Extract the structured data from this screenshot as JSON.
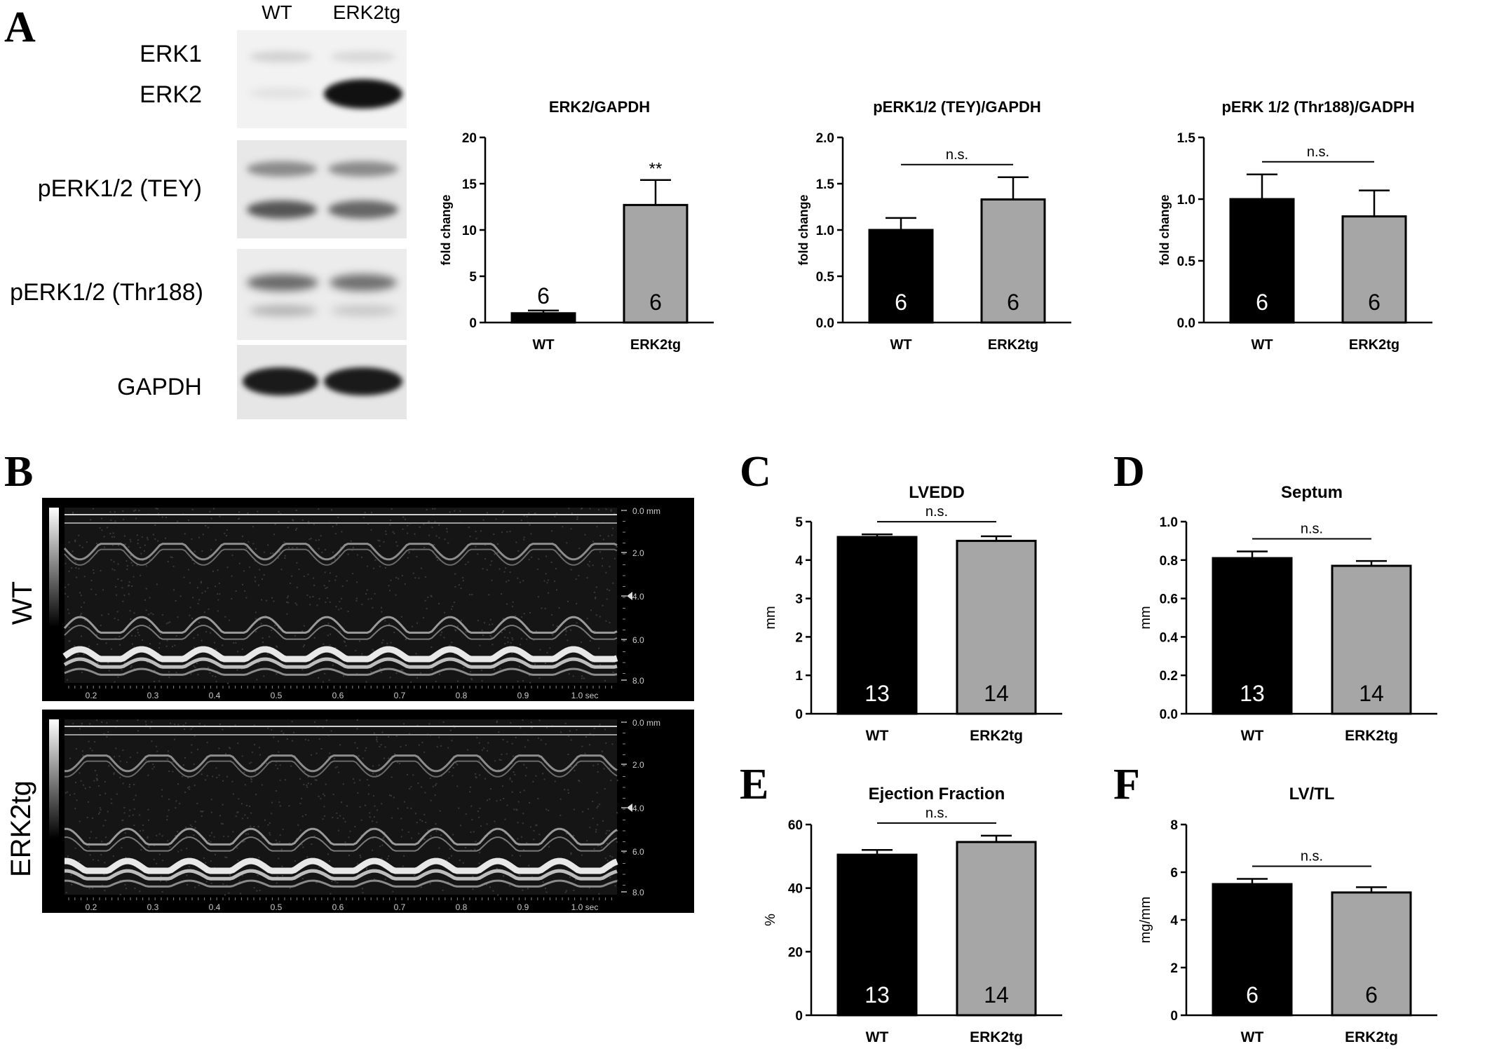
{
  "panels": {
    "A": "A",
    "B": "B",
    "C": "C",
    "D": "D",
    "E": "E",
    "F": "F"
  },
  "blot": {
    "lanes": [
      "WT",
      "ERK2tg"
    ],
    "rows": [
      {
        "labels": [
          "ERK1",
          "ERK2"
        ]
      },
      {
        "labels": [
          "pERK1/2 (TEY)"
        ]
      },
      {
        "labels": [
          "pERK1/2 (Thr188)"
        ]
      },
      {
        "labels": [
          "GAPDH"
        ]
      }
    ]
  },
  "echo": {
    "traces": [
      {
        "label": "WT",
        "depth_ticks": [
          "0.0 mm",
          "2.0",
          "4.0",
          "6.0",
          "8.0"
        ],
        "time_ticks": [
          "0.2",
          "0.3",
          "0.4",
          "0.5",
          "0.6",
          "0.7",
          "0.8",
          "0.9",
          "1.0 sec"
        ]
      },
      {
        "label": "ERK2tg",
        "depth_ticks": [
          "0.0 mm",
          "2.0",
          "4.0",
          "6.0",
          "8.0"
        ],
        "time_ticks": [
          "0.2",
          "0.3",
          "0.4",
          "0.5",
          "0.6",
          "0.7",
          "0.8",
          "0.9",
          "1.0 sec"
        ]
      }
    ]
  },
  "colors": {
    "wt_bar": "#000000",
    "erk2tg_bar": "#a6a6a6",
    "axis": "#000000"
  },
  "chart_data": [
    {
      "id": "erk2",
      "type": "bar",
      "title": "ERK2/GAPDH",
      "ylabel": "fold change",
      "categories": [
        "WT",
        "ERK2tg"
      ],
      "values": [
        1.0,
        12.7
      ],
      "errors": [
        0.3,
        2.7
      ],
      "n_labels": [
        "6",
        "6"
      ],
      "n_label_positions": [
        "above",
        "inside"
      ],
      "significance": {
        "text": "**",
        "type": "star"
      },
      "ylim": [
        0,
        20
      ],
      "yticks": [
        "0",
        "5",
        "10",
        "15",
        "20"
      ]
    },
    {
      "id": "perk-tey",
      "type": "bar",
      "title": "pERK1/2 (TEY)/GAPDH",
      "ylabel": "fold change",
      "categories": [
        "WT",
        "ERK2tg"
      ],
      "values": [
        1.0,
        1.33
      ],
      "errors": [
        0.13,
        0.24
      ],
      "n_labels": [
        "6",
        "6"
      ],
      "n_label_positions": [
        "inside",
        "inside"
      ],
      "significance": {
        "text": "n.s.",
        "type": "bracket"
      },
      "ylim": [
        0,
        2.0
      ],
      "yticks": [
        "0.0",
        "0.5",
        "1.0",
        "1.5",
        "2.0"
      ]
    },
    {
      "id": "perk-thr188",
      "type": "bar",
      "title": "pERK 1/2 (Thr188)/GADPH",
      "ylabel": "fold change",
      "categories": [
        "WT",
        "ERK2tg"
      ],
      "values": [
        1.0,
        0.86
      ],
      "errors": [
        0.2,
        0.21
      ],
      "n_labels": [
        "6",
        "6"
      ],
      "n_label_positions": [
        "inside",
        "inside"
      ],
      "significance": {
        "text": "n.s.",
        "type": "bracket"
      },
      "ylim": [
        0,
        1.5
      ],
      "yticks": [
        "0.0",
        "0.5",
        "1.0",
        "1.5"
      ]
    },
    {
      "id": "lvedd",
      "type": "bar",
      "title": "LVEDD",
      "ylabel": "mm",
      "categories": [
        "WT",
        "ERK2tg"
      ],
      "values": [
        4.6,
        4.5
      ],
      "errors": [
        0.07,
        0.12
      ],
      "n_labels": [
        "13",
        "14"
      ],
      "n_label_positions": [
        "inside",
        "inside"
      ],
      "significance": {
        "text": "n.s.",
        "type": "bracket"
      },
      "ylim": [
        0,
        5
      ],
      "yticks": [
        "0",
        "1",
        "2",
        "3",
        "4",
        "5"
      ]
    },
    {
      "id": "septum",
      "type": "bar",
      "title": "Septum",
      "ylabel": "mm",
      "categories": [
        "WT",
        "ERK2tg"
      ],
      "values": [
        0.81,
        0.77
      ],
      "errors": [
        0.035,
        0.025
      ],
      "n_labels": [
        "13",
        "14"
      ],
      "n_label_positions": [
        "inside",
        "inside"
      ],
      "significance": {
        "text": "n.s.",
        "type": "bracket"
      },
      "ylim": [
        0,
        1.0
      ],
      "yticks": [
        "0.0",
        "0.2",
        "0.4",
        "0.6",
        "0.8",
        "1.0"
      ]
    },
    {
      "id": "ef",
      "type": "bar",
      "title": "Ejection Fraction",
      "ylabel": "%",
      "categories": [
        "WT",
        "ERK2tg"
      ],
      "values": [
        50.5,
        54.5
      ],
      "errors": [
        1.5,
        2.0
      ],
      "n_labels": [
        "13",
        "14"
      ],
      "n_label_positions": [
        "inside",
        "inside"
      ],
      "significance": {
        "text": "n.s.",
        "type": "bracket"
      },
      "ylim": [
        0,
        60
      ],
      "yticks": [
        "0",
        "20",
        "40",
        "60"
      ]
    },
    {
      "id": "lvtl",
      "type": "bar",
      "title": "LV/TL",
      "ylabel": "mg/mm",
      "categories": [
        "WT",
        "ERK2tg"
      ],
      "values": [
        5.5,
        5.15
      ],
      "errors": [
        0.22,
        0.22
      ],
      "n_labels": [
        "6",
        "6"
      ],
      "n_label_positions": [
        "inside",
        "inside"
      ],
      "significance": {
        "text": "n.s.",
        "type": "bracket"
      },
      "ylim": [
        0,
        8
      ],
      "yticks": [
        "0",
        "2",
        "4",
        "6",
        "8"
      ]
    }
  ]
}
